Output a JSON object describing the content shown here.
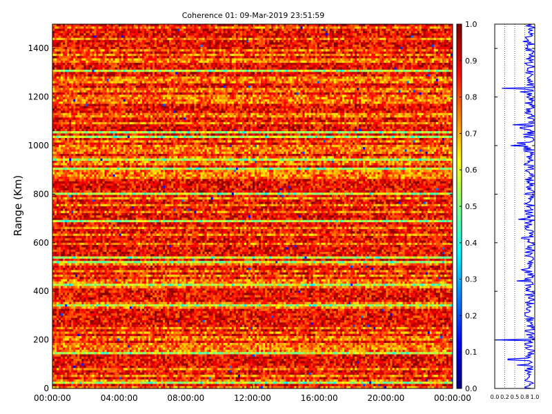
{
  "chart_data": {
    "type": "heatmap",
    "title": "Coherence 01: 09-Mar-2019 23:51:59",
    "ylabel": "Range (Km)",
    "xlabel": "",
    "x_ticks": [
      "00:00:00",
      "04:00:00",
      "08:00:00",
      "12:00:00",
      "16:00:00",
      "20:00:00",
      "00:00:00"
    ],
    "x_range_hours": [
      0,
      24
    ],
    "y_ticks": [
      0,
      200,
      400,
      600,
      800,
      1000,
      1200,
      1400
    ],
    "ylim": [
      0,
      1500
    ],
    "colorbar": {
      "colormap": "jet",
      "range": [
        0.0,
        1.0
      ],
      "ticks": [
        "0.0",
        "0.1",
        "0.2",
        "0.3",
        "0.4",
        "0.5",
        "0.6",
        "0.7",
        "0.8",
        "0.9",
        "1.0"
      ]
    },
    "profile_panel": {
      "type": "line",
      "x_ticks": [
        "0.0",
        "0.2",
        "0.5",
        "0.8",
        "1.0"
      ],
      "xlim": [
        0,
        1
      ],
      "gridlines_x": [
        0.25,
        0.5,
        0.75
      ],
      "line_color": "#0000ff",
      "typical_range": [
        0.75,
        1.0
      ],
      "dips": [
        {
          "range_km": 1235,
          "value": 0.18
        },
        {
          "range_km": 1085,
          "value": 0.45
        },
        {
          "range_km": 1000,
          "value": 0.4
        },
        {
          "range_km": 200,
          "value": 0.02
        },
        {
          "range_km": 120,
          "value": 0.33
        }
      ]
    }
  }
}
